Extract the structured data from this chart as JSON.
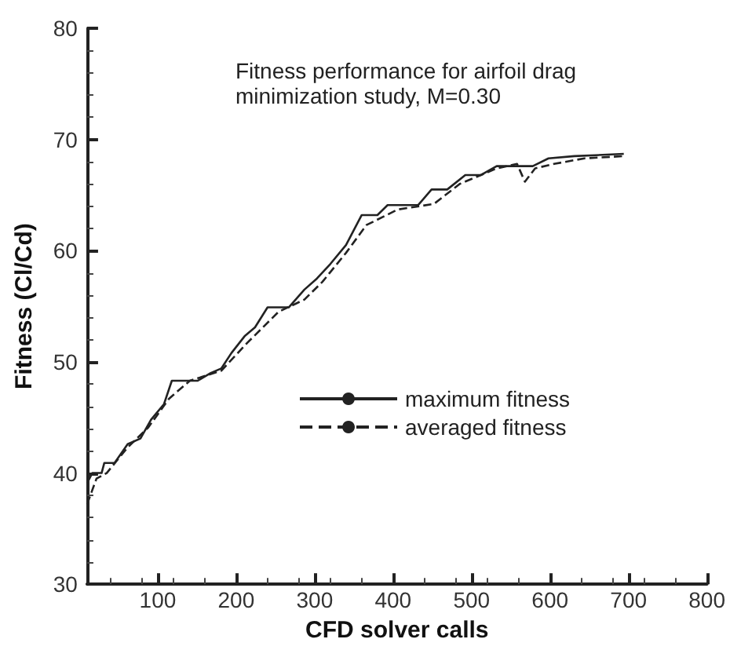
{
  "chart_data": {
    "type": "line",
    "title": "Fitness performance for airfoil drag minimization study, M=0.30",
    "xlabel": "CFD solver calls",
    "ylabel": "Fitness (Cl/Cd)",
    "xlim": [
      10,
      800
    ],
    "xticks": [
      100,
      200,
      300,
      400,
      500,
      600,
      700,
      800
    ],
    "ylim": [
      30,
      80
    ],
    "yticks": [
      30,
      40,
      50,
      60,
      70,
      80
    ],
    "grid": false,
    "legend": "center",
    "marker": "none",
    "series": [
      {
        "name": "maximum fitness",
        "color": "#222222",
        "line_style": "solid",
        "x": [
          10,
          16.6,
          28.5,
          31.9,
          45,
          61.7,
          78,
          91.5,
          108,
          118,
          151,
          167.6,
          181,
          194,
          210.7,
          224,
          240,
          267,
          287,
          303,
          320,
          340,
          360,
          380,
          393,
          432,
          449,
          469,
          492,
          512,
          532,
          578,
          598,
          631,
          694
        ],
        "values": [
          39.1,
          40,
          40,
          40.9,
          40.9,
          42.6,
          43.1,
          44.8,
          46.2,
          48.3,
          48.3,
          49,
          49.4,
          50.8,
          52.3,
          53.1,
          54.9,
          54.9,
          56.5,
          57.5,
          58.8,
          60.5,
          63.2,
          63.2,
          64.1,
          64.1,
          65.5,
          65.5,
          66.8,
          66.8,
          67.6,
          67.6,
          68.3,
          68.5,
          68.7
        ]
      },
      {
        "name": "averaged fitness",
        "color": "#222222",
        "line_style": "dashed",
        "x": [
          10,
          22,
          35,
          61.7,
          88,
          114.6,
          141,
          181,
          214,
          254,
          287,
          310,
          340,
          366,
          406,
          452,
          485,
          532,
          558,
          568,
          581,
          605,
          644,
          694
        ],
        "values": [
          37.2,
          39.5,
          40,
          42.3,
          44.1,
          46.7,
          48.3,
          49.2,
          51.7,
          54.5,
          55.6,
          57.2,
          59.8,
          62.3,
          63.7,
          64.2,
          66,
          67.4,
          67.8,
          66.2,
          67.4,
          67.8,
          68.3,
          68.5
        ]
      }
    ]
  }
}
